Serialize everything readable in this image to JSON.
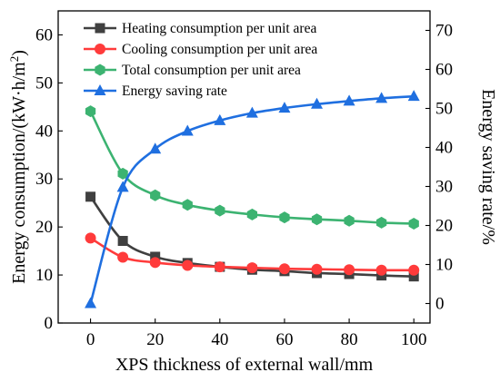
{
  "chart_data": {
    "type": "line",
    "x": [
      0,
      10,
      20,
      30,
      40,
      50,
      60,
      70,
      80,
      90,
      100
    ],
    "xlabel": "XPS thickness of external wall/mm",
    "xlim": [
      -10,
      105
    ],
    "xticks": [
      0,
      20,
      40,
      60,
      80,
      100
    ],
    "ylabel_left": "Energy consumption/(kW·h/m",
    "ylabel_left_sup": "2",
    "ylabel_left_close": ")",
    "ylim_left": [
      0,
      65
    ],
    "yticks_left": [
      0,
      10,
      20,
      30,
      40,
      50,
      60
    ],
    "ylabel_right": "Energy saving rate/%",
    "ylim_right": [
      -5,
      75
    ],
    "yticks_right": [
      0,
      10,
      20,
      30,
      40,
      50,
      60,
      70
    ],
    "legend_position": "top-left",
    "grid": false,
    "series": [
      {
        "name": "Heating consumption per unit area",
        "axis": "left",
        "marker": "square",
        "color": "#404040",
        "values": [
          26.3,
          17.1,
          13.8,
          12.5,
          11.7,
          11.1,
          10.8,
          10.4,
          10.2,
          9.9,
          9.7
        ]
      },
      {
        "name": "Cooling consumption per unit area",
        "axis": "left",
        "marker": "circle",
        "color": "#ff3b3b",
        "values": [
          17.7,
          13.7,
          12.6,
          12.0,
          11.7,
          11.5,
          11.3,
          11.2,
          11.1,
          11.0,
          11.0
        ]
      },
      {
        "name": "Total consumption per unit area",
        "axis": "left",
        "marker": "hexagon",
        "color": "#3cb371",
        "values": [
          44.1,
          31.1,
          26.6,
          24.6,
          23.4,
          22.6,
          22.0,
          21.6,
          21.3,
          20.9,
          20.7
        ]
      },
      {
        "name": "Energy saving rate",
        "axis": "right",
        "marker": "triangle",
        "color": "#1f6fe0",
        "values": [
          0,
          29.8,
          39.6,
          44.2,
          46.9,
          48.8,
          50.1,
          51.1,
          51.9,
          52.6,
          53.1
        ]
      }
    ]
  }
}
